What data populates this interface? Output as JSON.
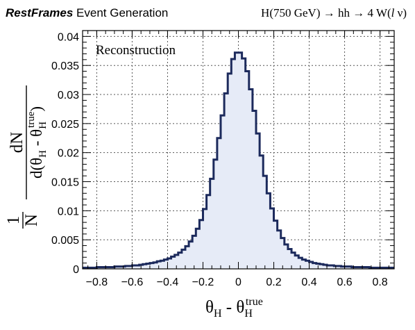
{
  "header": {
    "brand": "RestFrames",
    "subtitle": " Event Generation",
    "process": "H(750 GeV) → hh → 4 W(",
    "process_l": "l",
    "process_tail": " ν)"
  },
  "chart_data": {
    "type": "histogram",
    "annotation": "Reconstruction",
    "xlabel": {
      "theta": "θ",
      "sub_H": "H",
      "minus": " - ",
      "theta2": "θ",
      "sub_H2": "H",
      "sup_true": "true"
    },
    "ylabel": {
      "one": "1",
      "N": "N",
      "dN": "dN",
      "d_open": "d(",
      "theta": "θ",
      "sub_H": "H",
      "minus": " - ",
      "theta2": "θ",
      "sub_H2": "H",
      "sup_true": "true",
      "close": ")"
    },
    "xlim": [
      -0.88,
      0.88
    ],
    "ylim": [
      0,
      0.041
    ],
    "xticks": [
      -0.8,
      -0.6,
      -0.4,
      -0.2,
      0,
      0.2,
      0.4,
      0.6,
      0.8
    ],
    "xtick_labels": [
      "−0.8",
      "−0.6",
      "−0.4",
      "−0.2",
      "0",
      "0.2",
      "0.4",
      "0.6",
      "0.8"
    ],
    "yticks": [
      0,
      0.005,
      0.01,
      0.015,
      0.02,
      0.025,
      0.03,
      0.035,
      0.04
    ],
    "ytick_labels": [
      "0",
      "0.005",
      "0.01",
      "0.015",
      "0.02",
      "0.025",
      "0.03",
      "0.035",
      "0.04"
    ],
    "grid": true,
    "line_color": "#1c2a5c",
    "fill_color": "#e6ebf7",
    "bin_width": 0.02,
    "bins_x": [
      -0.88,
      -0.86,
      -0.84,
      -0.82,
      -0.8,
      -0.78,
      -0.76,
      -0.74,
      -0.72,
      -0.7,
      -0.68,
      -0.66,
      -0.64,
      -0.62,
      -0.6,
      -0.58,
      -0.56,
      -0.54,
      -0.52,
      -0.5,
      -0.48,
      -0.46,
      -0.44,
      -0.42,
      -0.4,
      -0.38,
      -0.36,
      -0.34,
      -0.32,
      -0.3,
      -0.28,
      -0.26,
      -0.24,
      -0.22,
      -0.2,
      -0.18,
      -0.16,
      -0.14,
      -0.12,
      -0.1,
      -0.08,
      -0.06,
      -0.04,
      -0.02,
      0,
      0.02,
      0.04,
      0.06,
      0.08,
      0.1,
      0.12,
      0.14,
      0.16,
      0.18,
      0.2,
      0.22,
      0.24,
      0.26,
      0.28,
      0.3,
      0.32,
      0.34,
      0.36,
      0.38,
      0.4,
      0.42,
      0.44,
      0.46,
      0.48,
      0.5,
      0.52,
      0.54,
      0.56,
      0.58,
      0.6,
      0.62,
      0.64,
      0.66,
      0.68,
      0.7,
      0.72,
      0.74,
      0.76,
      0.78,
      0.8,
      0.82,
      0.84,
      0.86
    ],
    "values": [
      0.0002,
      0.0002,
      0.0002,
      0.0002,
      0.0003,
      0.0003,
      0.0003,
      0.0003,
      0.0003,
      0.0004,
      0.0004,
      0.0004,
      0.0005,
      0.0005,
      0.0006,
      0.0006,
      0.0007,
      0.0008,
      0.0009,
      0.001,
      0.0011,
      0.0013,
      0.0014,
      0.0016,
      0.0018,
      0.0021,
      0.0024,
      0.0028,
      0.0033,
      0.0039,
      0.0047,
      0.0057,
      0.0069,
      0.0084,
      0.0103,
      0.0127,
      0.0155,
      0.0188,
      0.0225,
      0.0264,
      0.0302,
      0.0336,
      0.0361,
      0.0372,
      0.0372,
      0.0362,
      0.034,
      0.0309,
      0.0272,
      0.0233,
      0.0195,
      0.016,
      0.013,
      0.0104,
      0.0083,
      0.0066,
      0.0053,
      0.0042,
      0.0034,
      0.0028,
      0.0023,
      0.0019,
      0.0016,
      0.0014,
      0.0012,
      0.001,
      0.0009,
      0.0008,
      0.0007,
      0.0006,
      0.0006,
      0.0005,
      0.0005,
      0.0004,
      0.0004,
      0.0004,
      0.0003,
      0.0003,
      0.0003,
      0.0003,
      0.0003,
      0.0002,
      0.0002,
      0.0002,
      0.0002,
      0.0002,
      0.0002,
      0.0002
    ]
  }
}
